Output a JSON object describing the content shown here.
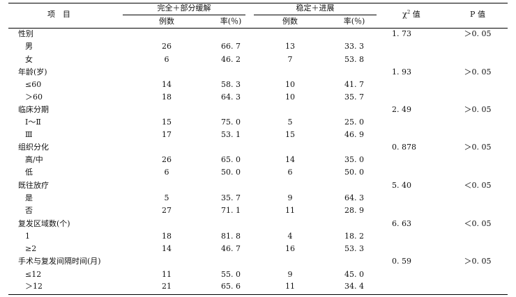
{
  "header": {
    "item": "项　目",
    "group1": "完全＋部分缓解",
    "group2": "稳定＋进展",
    "chi_pre": "χ",
    "chi_sup": "2",
    "chi_post": " 值",
    "p": "P 值",
    "count": "例数",
    "rate": "率(％)"
  },
  "rows": [
    {
      "label": "性别",
      "chi": "1. 73",
      "p": "＞0. 05"
    },
    {
      "label": "男",
      "n1": "26",
      "r1": "66. 7",
      "n2": "13",
      "r2": "33. 3"
    },
    {
      "label": "女",
      "n1": "6",
      "r1": "46. 2",
      "n2": "7",
      "r2": "53. 8"
    },
    {
      "label": "年龄(岁)",
      "chi": "1. 93",
      "p": "＞0. 05"
    },
    {
      "label": "≤60",
      "n1": "14",
      "r1": "58. 3",
      "n2": "10",
      "r2": "41. 7"
    },
    {
      "label": "＞60",
      "n1": "18",
      "r1": "64. 3",
      "n2": "10",
      "r2": "35. 7"
    },
    {
      "label": "临床分期",
      "chi": "2. 49",
      "p": "＞0. 05"
    },
    {
      "label": "Ⅰ～Ⅱ",
      "n1": "15",
      "r1": "75. 0",
      "n2": "5",
      "r2": "25. 0"
    },
    {
      "label": "Ⅲ",
      "n1": "17",
      "r1": "53. 1",
      "n2": "15",
      "r2": "46. 9"
    },
    {
      "label": "组织分化",
      "chi": "0. 878",
      "p": "＞0. 05"
    },
    {
      "label": "高/中",
      "n1": "26",
      "r1": "65. 0",
      "n2": "14",
      "r2": "35. 0"
    },
    {
      "label": "低",
      "n1": "6",
      "r1": "50. 0",
      "n2": "6",
      "r2": "50. 0"
    },
    {
      "label": "既往放疗",
      "chi": "5. 40",
      "p": "＜0. 05"
    },
    {
      "label": "是",
      "n1": "5",
      "r1": "35. 7",
      "n2": "9",
      "r2": "64. 3"
    },
    {
      "label": "否",
      "n1": "27",
      "r1": "71. 1",
      "n2": "11",
      "r2": "28. 9"
    },
    {
      "label": "复发区域数(个)",
      "chi": "6. 63",
      "p": "＜0. 05"
    },
    {
      "label": "1",
      "n1": "18",
      "r1": "81. 8",
      "n2": "4",
      "r2": "18. 2"
    },
    {
      "label": "≥2",
      "n1": "14",
      "r1": "46. 7",
      "n2": "16",
      "r2": "53. 3"
    },
    {
      "label": "手术与复发间隔时间(月)",
      "chi": "0. 59",
      "p": "＞0. 05"
    },
    {
      "label": "≤12",
      "n1": "11",
      "r1": "55. 0",
      "n2": "9",
      "r2": "45. 0"
    },
    {
      "label": "＞12",
      "n1": "21",
      "r1": "65. 6",
      "n2": "11",
      "r2": "34. 4"
    }
  ]
}
